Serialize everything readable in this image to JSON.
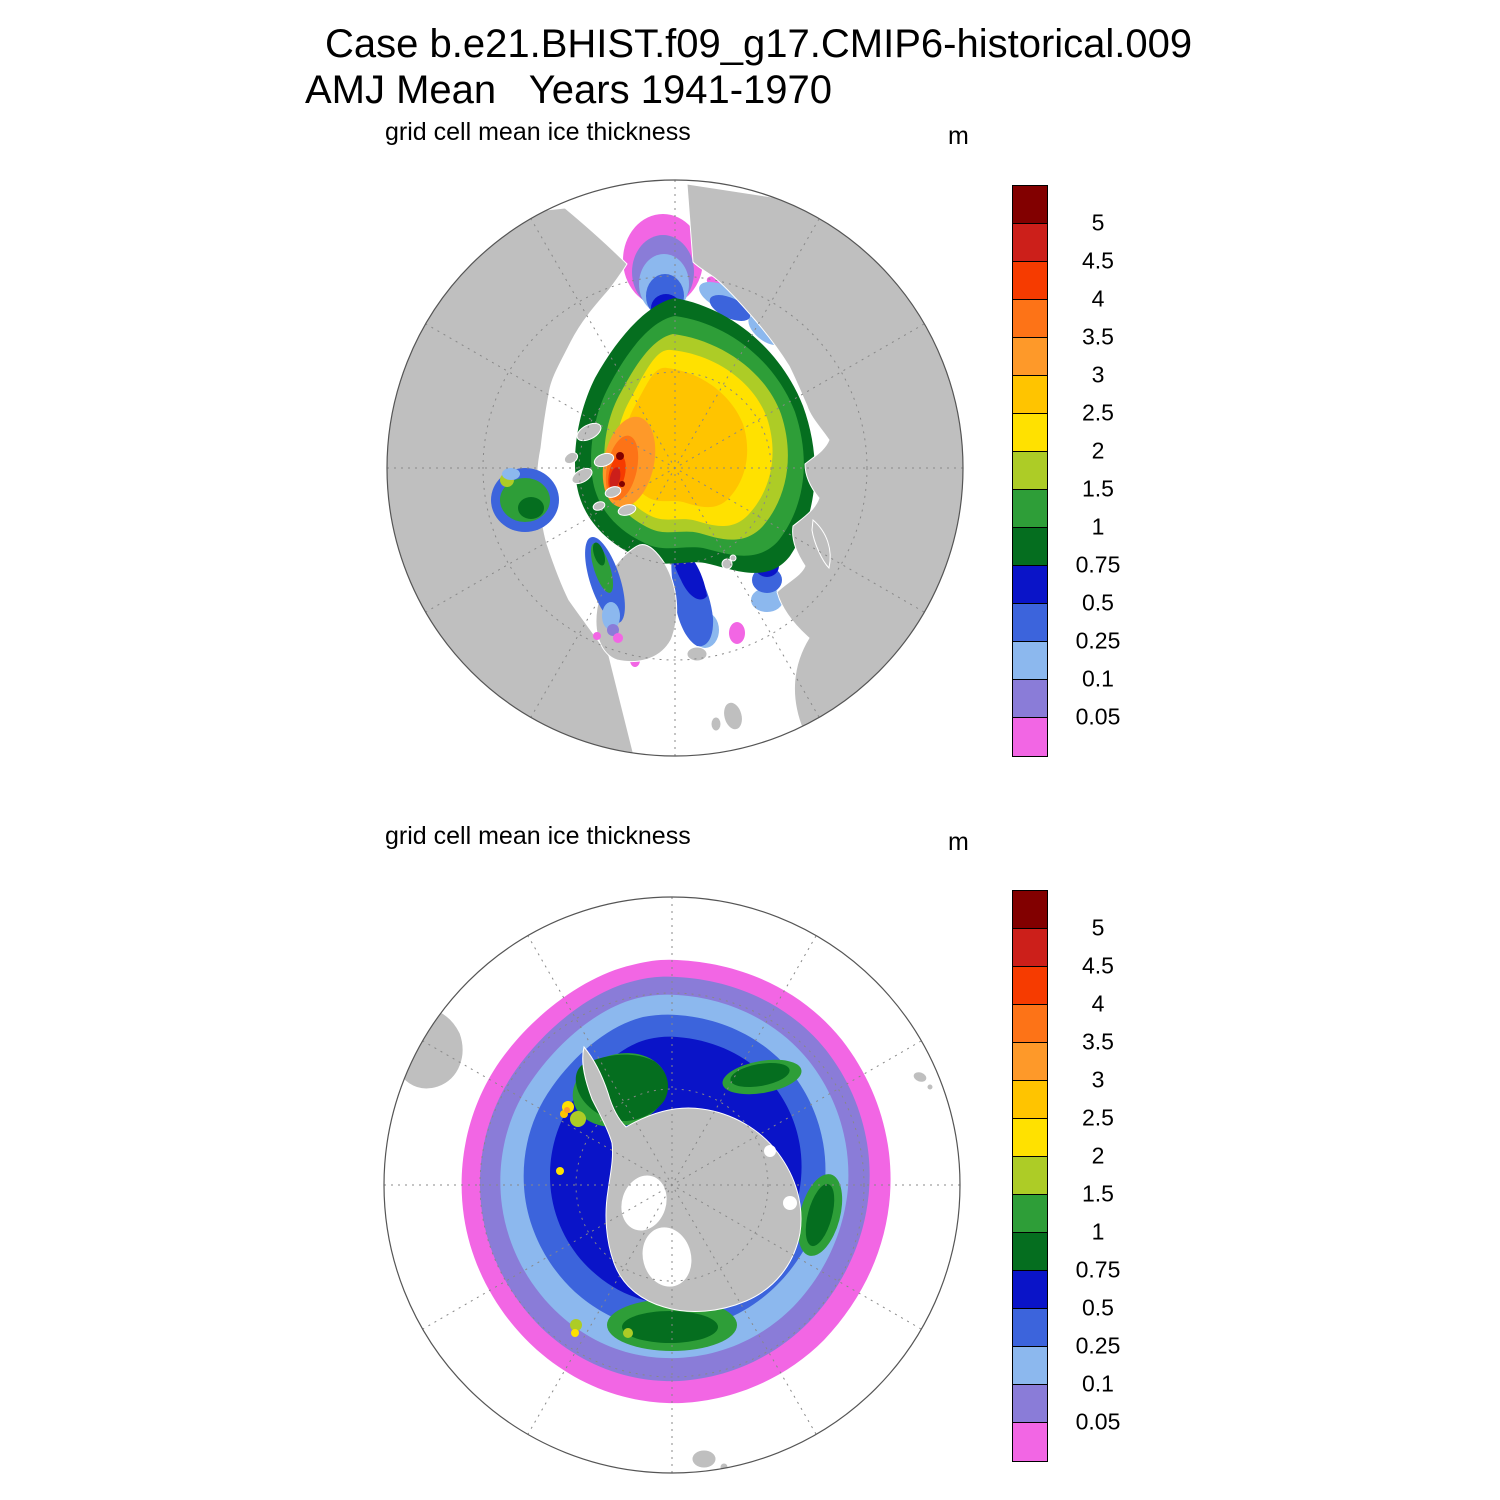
{
  "header": {
    "line1": "Case b.e21.BHIST.f09_g17.CMIP6-historical.009",
    "line2": "AMJ Mean   Years 1941-1970"
  },
  "panels": {
    "north": {
      "title": "grid cell mean ice thickness",
      "units": "m"
    },
    "south": {
      "title": "grid cell mean ice thickness",
      "units": "m"
    }
  },
  "colorbar": {
    "tick_labels": [
      "5",
      "4.5",
      "4",
      "3.5",
      "3",
      "2.5",
      "2",
      "1.5",
      "1",
      "0.75",
      "0.5",
      "0.25",
      "0.1",
      "0.05"
    ],
    "cell_colors_top_to_bottom": [
      "#820000",
      "#cc1f1a",
      "#f63b00",
      "#fd7317",
      "#fe9929",
      "#ffc400",
      "#ffe100",
      "#adcc26",
      "#2e9e38",
      "#056e1f",
      "#0a14c8",
      "#3c64dc",
      "#8cb8ee",
      "#8a7cd8",
      "#f266e4"
    ],
    "land_color": "#bfbfbf",
    "ocean_color": "#ffffff"
  },
  "chart_data": {
    "type": "heatmap",
    "case": "b.e21.BHIST.f09_g17.CMIP6-historical.009",
    "statistic": "AMJ Mean",
    "years": "1941-1970",
    "variable": "grid cell mean ice thickness",
    "units": "m",
    "contour_levels": [
      0.05,
      0.1,
      0.25,
      0.5,
      0.75,
      1,
      1.5,
      2,
      2.5,
      3,
      3.5,
      4,
      4.5,
      5
    ],
    "palette_top_to_bottom": [
      "#820000",
      "#cc1f1a",
      "#f63b00",
      "#fd7317",
      "#fe9929",
      "#ffc400",
      "#ffe100",
      "#adcc26",
      "#2e9e38",
      "#056e1f",
      "#0a14c8",
      "#3c64dc",
      "#8cb8ee",
      "#8a7cd8",
      "#f266e4"
    ],
    "legend_position": "right of each map",
    "panels": [
      {
        "hemisphere": "Northern (Arctic)",
        "projection": "north polar stereographic",
        "summary": "Central Arctic pack 2-3 m (yellow/gold) shifted toward the Canadian Archipelago and Greenland, with 3 to more than 5 m (orange, red, dark red) just north of the Canadian Archipelago; 1-2 m (greens) over the Siberian shelf seas, Hudson Bay and Baffin Bay; 0.1-0.75 m (blues) in the Bering Sea, along the East Siberian coast and in the Greenland/Norwegian Sea ice tongue; less than 0.1 m (purple/magenta) fringes at the ice margins."
      },
      {
        "hemisphere": "Southern (Antarctic)",
        "projection": "south polar stereographic",
        "summary": "Continuous ring of sea ice around Antarctica: 0.75-1.5 m (greens) near the coast, especially in the Weddell and Ross sea sectors, locally 2-4 m (yellow/orange) west of the Antarctic Peninsula; thinning outward through 0.25-0.75 m (blues) to 0.05-0.1 m (purple) and less than 0.05 m (magenta) at the northern ice edge."
      }
    ]
  }
}
